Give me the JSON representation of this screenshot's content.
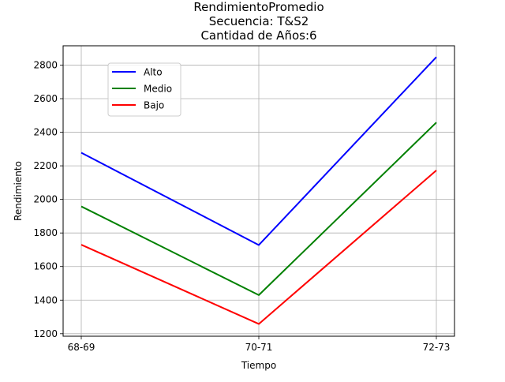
{
  "chart_data": {
    "type": "line",
    "title_lines": [
      "RendimientoPromedio",
      "Secuencia: T&S2",
      "Cantidad de Años:6"
    ],
    "xlabel": "Tiempo",
    "ylabel": "Rendimiento",
    "categories": [
      "68-69",
      "70-71",
      "72-73"
    ],
    "ylim": [
      1185,
      2915
    ],
    "yticks": [
      1200,
      1400,
      1600,
      1800,
      2000,
      2200,
      2400,
      2600,
      2800
    ],
    "grid": true,
    "legend_position": "upper-left",
    "series": [
      {
        "name": "Alto",
        "color": "#0000ff",
        "values": [
          2278,
          1728,
          2848
        ]
      },
      {
        "name": "Medio",
        "color": "#008000",
        "values": [
          1958,
          1430,
          2458
        ]
      },
      {
        "name": "Bajo",
        "color": "#ff0000",
        "values": [
          1730,
          1258,
          2173
        ]
      }
    ]
  }
}
